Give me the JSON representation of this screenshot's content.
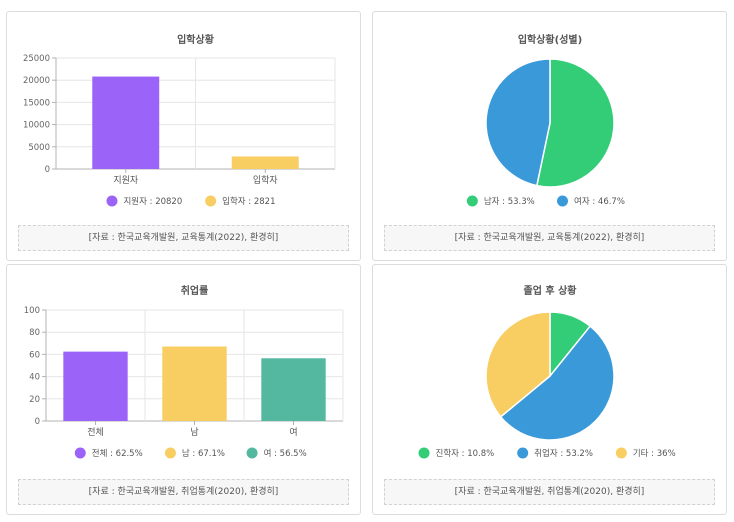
{
  "colors": {
    "purple": "#9b63f8",
    "yellow": "#f8cd62",
    "green": "#33cc77",
    "blue": "#3a99d9",
    "teal": "#54b8a0",
    "grid": "#e6e6e6",
    "axis": "#b3b3b3"
  },
  "cards": [
    {
      "source": "[자료 : 한국교육개발원, 교육통계(2022), 환경히]",
      "chart_data": {
        "type": "bar",
        "title": "입학상황",
        "categories": [
          "지원자",
          "입학자"
        ],
        "values": [
          20820,
          2821
        ],
        "ylim": [
          0,
          25000
        ],
        "yticks": [
          0,
          5000,
          10000,
          15000,
          20000,
          25000
        ],
        "colors": [
          "#9b63f8",
          "#f8cd62"
        ],
        "legend": [
          "지원자 : 20820",
          "입학자 : 2821"
        ],
        "grid": true,
        "legend_position": "bottom"
      }
    },
    {
      "source": "[자료 : 한국교육개발원, 교육통계(2022), 환경히]",
      "chart_data": {
        "type": "pie",
        "title": "입학상황(성별)",
        "labels": [
          "남자",
          "여자"
        ],
        "values": [
          53.3,
          46.7
        ],
        "colors": [
          "#33cc77",
          "#3a99d9"
        ],
        "legend": [
          "남자 : 53.3%",
          "여자 : 46.7%"
        ],
        "legend_position": "bottom"
      }
    },
    {
      "source": "[자료 : 한국교육개발원, 취업통계(2020), 환경히]",
      "chart_data": {
        "type": "bar",
        "title": "취업률",
        "categories": [
          "전체",
          "남",
          "여"
        ],
        "values": [
          62.5,
          67.1,
          56.5
        ],
        "ylim": [
          0,
          100
        ],
        "yticks": [
          0,
          20,
          40,
          60,
          80,
          100
        ],
        "colors": [
          "#9b63f8",
          "#f8cd62",
          "#54b8a0"
        ],
        "legend": [
          "전체 : 62.5%",
          "남 : 67.1%",
          "여 : 56.5%"
        ],
        "grid": true,
        "legend_position": "bottom"
      }
    },
    {
      "source": "[자료 : 한국교육개발원, 취업통계(2020), 환경히]",
      "chart_data": {
        "type": "pie",
        "title": "졸업 후 상황",
        "labels": [
          "진학자",
          "취업자",
          "기타"
        ],
        "values": [
          10.8,
          53.2,
          36
        ],
        "colors": [
          "#33cc77",
          "#3a99d9",
          "#f8cd62"
        ],
        "legend": [
          "진학자 : 10.8%",
          "취업자 : 53.2%",
          "기타 : 36%"
        ],
        "legend_position": "bottom"
      }
    }
  ]
}
